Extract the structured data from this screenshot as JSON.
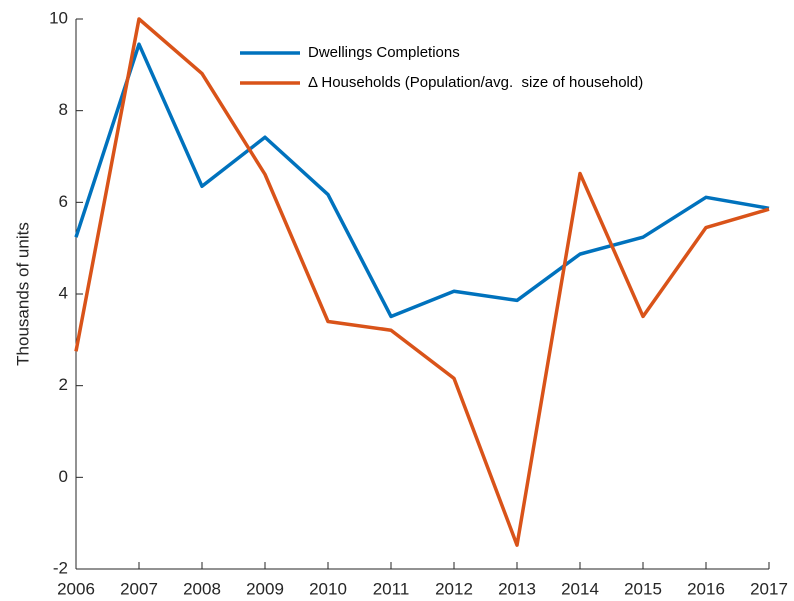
{
  "chart_data": {
    "type": "line",
    "ylabel": "Thousands of units",
    "x": [
      2006,
      2007,
      2008,
      2009,
      2010,
      2011,
      2012,
      2013,
      2014,
      2015,
      2016,
      2017
    ],
    "series": [
      {
        "name": "Dwellings Completions",
        "color": "#0072bd",
        "values": [
          5.24,
          9.45,
          6.35,
          7.42,
          6.17,
          3.51,
          4.06,
          3.86,
          4.87,
          5.24,
          6.11,
          5.87
        ]
      },
      {
        "name": "Δ Households (Population/avg.  size of household)",
        "color": "#d95319",
        "values": [
          2.75,
          10,
          8.81,
          6.61,
          3.4,
          3.21,
          2.16,
          -1.48,
          6.63,
          3.51,
          5.45,
          5.85
        ]
      }
    ],
    "xlim": [
      2006,
      2017
    ],
    "xticks": [
      2006,
      2007,
      2008,
      2009,
      2010,
      2011,
      2012,
      2013,
      2014,
      2015,
      2016,
      2017
    ],
    "ylim": [
      -2,
      10
    ],
    "yticks": [
      -2,
      0,
      2,
      4,
      6,
      8,
      10
    ],
    "grid": false,
    "legend": "top"
  }
}
